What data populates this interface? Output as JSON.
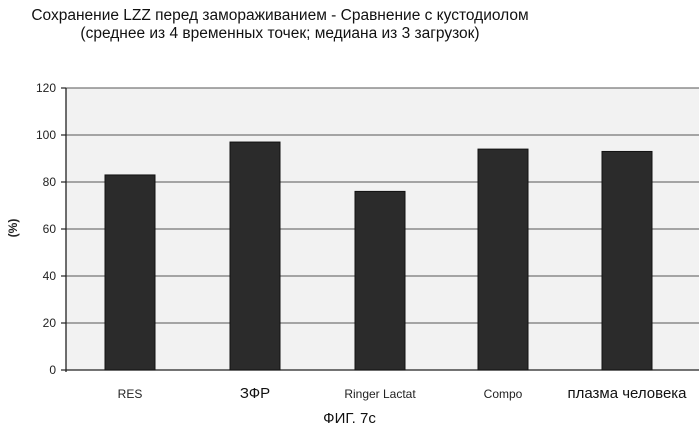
{
  "chart_data": {
    "type": "bar",
    "title": "Сохранение LZZ  перед замораживанием - Сравнение  с кустодиолом",
    "subtitle": "(среднее  из 4 временных точек;  медиана  из 3  загрузок)",
    "ylabel": "(%)",
    "xlabel": "",
    "categories": [
      "RES",
      "ЗФР",
      "Ringer Lactat",
      "Compo",
      "плазма человека"
    ],
    "values": [
      83,
      97,
      76,
      94,
      93
    ],
    "ylim": [
      0,
      120
    ],
    "yticks": [
      "0",
      "20",
      "40",
      "60",
      "80",
      "100",
      "120"
    ],
    "grid": true,
    "legend": "none",
    "bar_color": "#2b2b2b"
  },
  "caption": "ФИГ. 7с"
}
